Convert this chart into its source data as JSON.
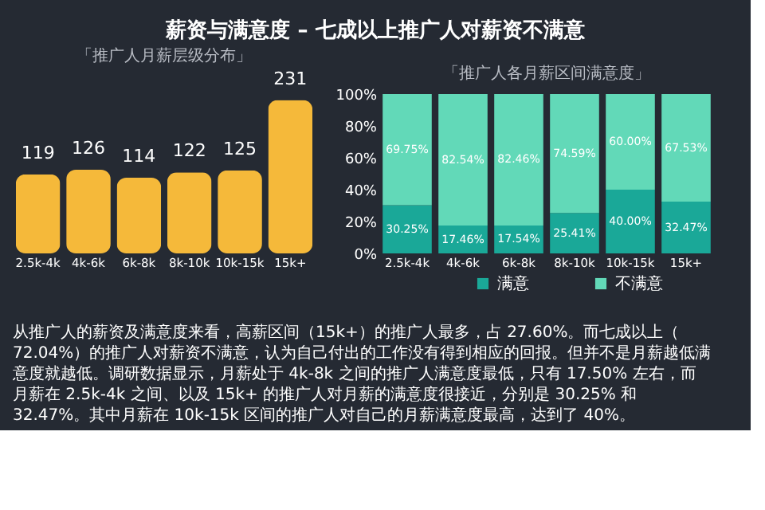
{
  "chart_data": [
    {
      "type": "bar",
      "title": "薪资与满意度 – 七成以上推广人对薪资不满意",
      "subtitle": "「推广人月薪层级分布」",
      "categories": [
        "2.5k-4k",
        "4k-6k",
        "6k-8k",
        "8k-10k",
        "10k-15k",
        "15k+"
      ],
      "values": [
        119,
        126,
        114,
        122,
        125,
        231
      ],
      "color": "#f5b93a",
      "data_labels": true,
      "tick_labels": "x",
      "grid": false
    },
    {
      "type": "bar",
      "subtitle": "「推广人各月薪区间满意度」",
      "stacked": true,
      "categories": [
        "2.5k-4k",
        "4k-6k",
        "6k-8k",
        "8k-10k",
        "10k-15k",
        "15k+"
      ],
      "series": [
        {
          "name": "满意",
          "color": "#1aa898",
          "values": [
            30.25,
            17.46,
            17.54,
            25.41,
            40.0,
            32.47
          ],
          "value_labels": [
            "30.25%",
            "17.46%",
            "17.54%",
            "25.41%",
            "40.00%",
            "32.47%"
          ]
        },
        {
          "name": "不满意",
          "color": "#62d9b8",
          "values": [
            69.75,
            82.54,
            82.46,
            74.59,
            60.0,
            67.53
          ],
          "value_labels": [
            "69.75%",
            "82.54%",
            "82.46%",
            "74.59%",
            "60.00%",
            "67.53%"
          ]
        }
      ],
      "ylim": [
        0,
        100
      ],
      "yticks": [
        {
          "value": 0,
          "label": "0%"
        },
        {
          "value": 20,
          "label": "20%"
        },
        {
          "value": 40,
          "label": "40%"
        },
        {
          "value": 60,
          "label": "60%"
        },
        {
          "value": 80,
          "label": "80%"
        },
        {
          "value": 100,
          "label": "100%"
        }
      ],
      "grid": false,
      "legend": "bottom",
      "annotations": [
        "从推广人的薪资及满意度来看，高薪区间（15k+）的推广人最多，占 27.60%。而七成以上（72.04%）的推广人对薪资不满意，认为自己付出的工作没有得到相应的回报。但并不是月薪越低满意度就越低。调研数据显示，月薪处于 4k-8k 之间的推广人满意度最低，只有 17.50% 左右，而月薪在 2.5k-4k 之间、以及 15k+ 的推广人对月薪的满意度很接近，分别是 30.25% 和 32.47%。其中月薪在 10k-15k 区间的推广人对自己的月薪满意度最高，达到了 40%。"
      ]
    }
  ]
}
